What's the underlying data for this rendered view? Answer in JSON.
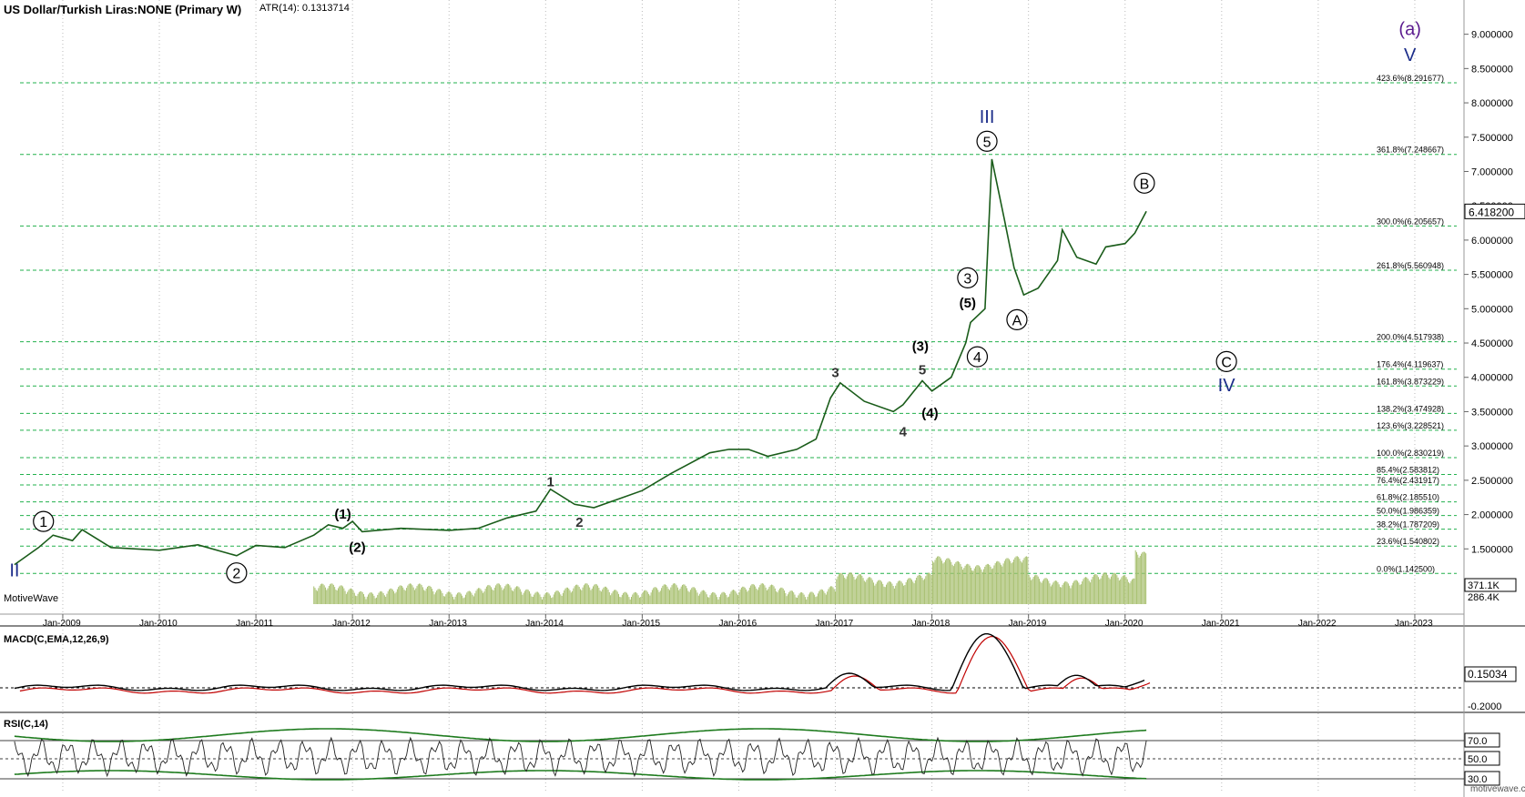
{
  "header": {
    "symbol": "US Dollar/Turkish Liras:NONE (Primary W)",
    "atr": "ATR(14): 0.1313714",
    "watermark_left": "MotiveWave",
    "watermark_right": "motivewave.com"
  },
  "chart_data": {
    "type": "line",
    "title": "US Dollar/Turkish Liras:NONE (Primary W)",
    "price_axis": {
      "ticks": [
        "9.000000",
        "8.500000",
        "8.000000",
        "7.500000",
        "7.000000",
        "6.500000",
        "6.000000",
        "5.500000",
        "5.000000",
        "4.500000",
        "4.000000",
        "3.500000",
        "3.000000",
        "2.500000",
        "2.000000",
        "1.500000"
      ],
      "last_price": "6.418200"
    },
    "time_axis": [
      "Jan-2009",
      "Jan-2010",
      "Jan-2011",
      "Jan-2012",
      "Jan-2013",
      "Jan-2014",
      "Jan-2015",
      "Jan-2016",
      "Jan-2017",
      "Jan-2018",
      "Jan-2019",
      "Jan-2020",
      "Jan-2021",
      "Jan-2022",
      "Jan-2023"
    ],
    "fib_levels": [
      {
        "label": "423.6%(8.291677)",
        "value": 8.291677
      },
      {
        "label": "361.8%(7.248667)",
        "value": 7.248667
      },
      {
        "label": "300.0%(6.205657)",
        "value": 6.205657
      },
      {
        "label": "261.8%(5.560948)",
        "value": 5.560948
      },
      {
        "label": "200.0%(4.517938)",
        "value": 4.517938
      },
      {
        "label": "176.4%(4.119637)",
        "value": 4.119637
      },
      {
        "label": "161.8%(3.873229)",
        "value": 3.873229
      },
      {
        "label": "138.2%(3.474928)",
        "value": 3.474928
      },
      {
        "label": "123.6%(3.228521)",
        "value": 3.228521
      },
      {
        "label": "100.0%(2.830219)",
        "value": 2.830219
      },
      {
        "label": "85.4%(2.583812)",
        "value": 2.583812
      },
      {
        "label": "76.4%(2.431917)",
        "value": 2.431917
      },
      {
        "label": "61.8%(2.185510)",
        "value": 2.18551
      },
      {
        "label": "50.0%(1.986359)",
        "value": 1.986359
      },
      {
        "label": "38.2%(1.787209)",
        "value": 1.787209
      },
      {
        "label": "23.6%(1.540802)",
        "value": 1.540802
      },
      {
        "label": "0.0%(1.142500)",
        "value": 1.1425
      }
    ],
    "price_series": [
      [
        2008.5,
        1.27
      ],
      [
        2008.75,
        1.52
      ],
      [
        2008.9,
        1.7
      ],
      [
        2009.1,
        1.62
      ],
      [
        2009.2,
        1.78
      ],
      [
        2009.5,
        1.52
      ],
      [
        2010.0,
        1.48
      ],
      [
        2010.4,
        1.56
      ],
      [
        2010.8,
        1.4
      ],
      [
        2011.0,
        1.55
      ],
      [
        2011.3,
        1.52
      ],
      [
        2011.6,
        1.7
      ],
      [
        2011.75,
        1.85
      ],
      [
        2011.9,
        1.8
      ],
      [
        2012.0,
        1.9
      ],
      [
        2012.1,
        1.75
      ],
      [
        2012.5,
        1.8
      ],
      [
        2013.0,
        1.77
      ],
      [
        2013.3,
        1.8
      ],
      [
        2013.6,
        1.95
      ],
      [
        2013.9,
        2.05
      ],
      [
        2014.05,
        2.37
      ],
      [
        2014.3,
        2.15
      ],
      [
        2014.5,
        2.1
      ],
      [
        2014.8,
        2.25
      ],
      [
        2015.0,
        2.35
      ],
      [
        2015.3,
        2.6
      ],
      [
        2015.7,
        2.9
      ],
      [
        2015.9,
        2.95
      ],
      [
        2016.1,
        2.95
      ],
      [
        2016.3,
        2.85
      ],
      [
        2016.6,
        2.95
      ],
      [
        2016.8,
        3.1
      ],
      [
        2016.95,
        3.7
      ],
      [
        2017.05,
        3.92
      ],
      [
        2017.3,
        3.65
      ],
      [
        2017.6,
        3.5
      ],
      [
        2017.7,
        3.6
      ],
      [
        2017.9,
        3.95
      ],
      [
        2018.0,
        3.8
      ],
      [
        2018.2,
        4.0
      ],
      [
        2018.35,
        4.5
      ],
      [
        2018.4,
        4.8
      ],
      [
        2018.55,
        5.0
      ],
      [
        2018.62,
        7.18
      ],
      [
        2018.75,
        6.3
      ],
      [
        2018.85,
        5.6
      ],
      [
        2018.95,
        5.2
      ],
      [
        2019.1,
        5.3
      ],
      [
        2019.3,
        5.7
      ],
      [
        2019.35,
        6.15
      ],
      [
        2019.5,
        5.75
      ],
      [
        2019.7,
        5.65
      ],
      [
        2019.8,
        5.9
      ],
      [
        2020.0,
        5.95
      ],
      [
        2020.1,
        6.1
      ],
      [
        2020.22,
        6.42
      ]
    ],
    "wave_labels": [
      {
        "text": "1",
        "t": 2008.8,
        "p": 1.9,
        "circle": true,
        "color": "#000000"
      },
      {
        "text": "II",
        "t": 2008.5,
        "p": 1.18,
        "circle": false,
        "color": "#1c2d8a"
      },
      {
        "text": "2",
        "t": 2010.8,
        "p": 1.15,
        "circle": true,
        "color": "#000000"
      },
      {
        "text": "(1)",
        "t": 2011.9,
        "p": 2.02,
        "circle": false,
        "color": "#000000"
      },
      {
        "text": "(2)",
        "t": 2012.05,
        "p": 1.54,
        "circle": false,
        "color": "#000000"
      },
      {
        "text": "1",
        "t": 2014.05,
        "p": 2.49,
        "circle": false,
        "color": "#333333"
      },
      {
        "text": "2",
        "t": 2014.35,
        "p": 1.9,
        "circle": false,
        "color": "#333333"
      },
      {
        "text": "3",
        "t": 2017.0,
        "p": 4.08,
        "circle": false,
        "color": "#333333"
      },
      {
        "text": "4",
        "t": 2017.7,
        "p": 3.22,
        "circle": false,
        "color": "#333333"
      },
      {
        "text": "5",
        "t": 2017.9,
        "p": 4.12,
        "circle": false,
        "color": "#333333"
      },
      {
        "text": "(3)",
        "t": 2017.88,
        "p": 4.47,
        "circle": false,
        "color": "#000000"
      },
      {
        "text": "(4)",
        "t": 2017.98,
        "p": 3.49,
        "circle": false,
        "color": "#000000"
      },
      {
        "text": "(5)",
        "t": 2018.37,
        "p": 5.1,
        "circle": false,
        "color": "#000000"
      },
      {
        "text": "3",
        "t": 2018.37,
        "p": 5.45,
        "circle": true,
        "color": "#000000"
      },
      {
        "text": "4",
        "t": 2018.47,
        "p": 4.3,
        "circle": true,
        "color": "#000000"
      },
      {
        "text": "5",
        "t": 2018.57,
        "p": 7.44,
        "circle": true,
        "color": "#000000"
      },
      {
        "text": "III",
        "t": 2018.57,
        "p": 7.79,
        "circle": false,
        "color": "#1c2d8a"
      },
      {
        "text": "A",
        "t": 2018.88,
        "p": 4.84,
        "circle": true,
        "color": "#000000"
      },
      {
        "text": "B",
        "t": 2020.2,
        "p": 6.83,
        "circle": true,
        "color": "#000000"
      },
      {
        "text": "C",
        "t": 2021.05,
        "p": 4.23,
        "circle": true,
        "color": "#000000"
      },
      {
        "text": "IV",
        "t": 2021.05,
        "p": 3.88,
        "circle": false,
        "color": "#1c2d8a"
      },
      {
        "text": "(a)",
        "t": 2022.95,
        "p": 9.07,
        "circle": false,
        "color": "#5b1b8f"
      },
      {
        "text": "V",
        "t": 2022.95,
        "p": 8.69,
        "circle": false,
        "color": "#1c2d8a"
      }
    ],
    "volume": {
      "last": "371.1K",
      "secondary": "286.4K"
    },
    "macd": {
      "label": "MACD(C,EMA,12,26,9)",
      "value": "0.15034",
      "ref": "-0.2000"
    },
    "rsi": {
      "label": "RSI(C,14)",
      "levels": [
        "70.0",
        "50.0",
        "30.0"
      ]
    },
    "colors": {
      "fib": "#22b14c",
      "price": "#1a5c1a",
      "macd": "#000000",
      "signal": "#c00000",
      "volume": "#a8c070",
      "wave_blue": "#1c2d8a",
      "wave_purple": "#5b1b8f",
      "rsi_band": "#1e7b1e"
    }
  }
}
